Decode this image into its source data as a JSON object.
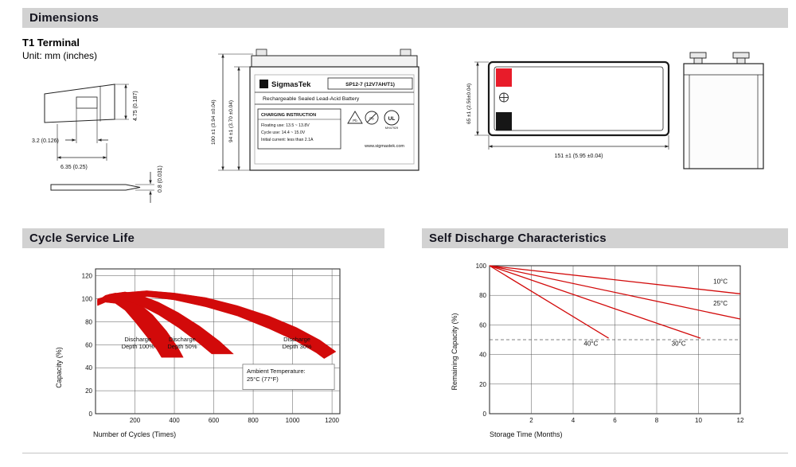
{
  "header": {
    "dimensions": "Dimensions",
    "cycle_life": "Cycle Service Life",
    "self_discharge": "Self Discharge Characteristics"
  },
  "dims": {
    "terminal_title": "T1 Terminal",
    "unit_note": "Unit: mm (inches)",
    "terminal": {
      "tip_width": "3.2 (0.126)",
      "base_width": "6.35 (0.25)",
      "height": "4.75 (0.187)",
      "thickness": "0.8 (0.031)"
    },
    "front": {
      "brand": "SigmasTek",
      "logo_letter": "S",
      "model": "SP12-7 (12V7AH/T1)",
      "subtitle": "Rechargeable Sealed Lead-Acid Battery",
      "charging_title": "CHARGING INSTRUCTION",
      "charging_line1": "Floating use: 13.5 ~ 13.8V",
      "charging_line2": "Cycle use: 14.4 ~ 15.0V",
      "charging_line3": "Initial current: less than 2.1A",
      "pb1": "Pb",
      "pb2": "Pb",
      "ul": "UL",
      "ul_code": "MH47929",
      "website": "www.sigmastek.com",
      "dim_total": "100 ±1 (3.94 ±0.04)",
      "dim_case": "94 ±1 (3.70 ±0.04)"
    },
    "top": {
      "dim_depth": "65 ±1 (2.56±0.04)",
      "dim_length": "151 ±1 (5.95 ±0.04)"
    }
  },
  "colors": {
    "positive_red": "#e81c2a",
    "negative_black": "#161616",
    "chart_red": "#d20a0a",
    "header_bg": "#d2d2d2"
  },
  "chart_data": [
    {
      "type": "area",
      "title": "Cycle Service Life",
      "xlabel": "Number of Cycles (Times)",
      "ylabel": "Capacity (%)",
      "xlim": [
        0,
        1240
      ],
      "ylim": [
        0,
        126
      ],
      "xticks": [
        200,
        400,
        600,
        800,
        1000,
        1200
      ],
      "yticks": [
        0,
        20,
        40,
        60,
        80,
        100,
        120
      ],
      "grid": true,
      "legend": "none",
      "color": "#d20a0a",
      "bands": [
        {
          "name": "Discharge Depth 100%",
          "upper": [
            [
              10,
              98
            ],
            [
              50,
              103
            ],
            [
              100,
              105
            ],
            [
              160,
              103
            ],
            [
              220,
              96
            ],
            [
              290,
              86
            ],
            [
              360,
              72
            ],
            [
              420,
              57
            ],
            [
              445,
              49
            ]
          ],
          "lower": [
            [
              10,
              94
            ],
            [
              50,
              97
            ],
            [
              100,
              96
            ],
            [
              150,
              90
            ],
            [
              200,
              80
            ],
            [
              260,
              67
            ],
            [
              310,
              56
            ],
            [
              335,
              49
            ]
          ],
          "label": {
            "lines": [
              "Discharge",
              "Depth 100%"
            ],
            "x": 215,
            "y": 63
          }
        },
        {
          "name": "Discharge Depth 50%",
          "upper": [
            [
              10,
              99
            ],
            [
              70,
              104
            ],
            [
              150,
              106
            ],
            [
              230,
              103
            ],
            [
              320,
              97
            ],
            [
              420,
              88
            ],
            [
              530,
              76
            ],
            [
              630,
              63
            ],
            [
              700,
              52
            ]
          ],
          "lower": [
            [
              10,
              95
            ],
            [
              70,
              99
            ],
            [
              150,
              99
            ],
            [
              230,
              94
            ],
            [
              320,
              86
            ],
            [
              420,
              75
            ],
            [
              520,
              62
            ],
            [
              590,
              52
            ]
          ],
          "label": {
            "lines": [
              "Discharge",
              "Depth 50%"
            ],
            "x": 440,
            "y": 63
          }
        },
        {
          "name": "Discharge Depth 30%",
          "upper": [
            [
              10,
              100
            ],
            [
              120,
              105
            ],
            [
              260,
              107
            ],
            [
              400,
              105
            ],
            [
              560,
              101
            ],
            [
              720,
              94
            ],
            [
              880,
              85
            ],
            [
              1020,
              75
            ],
            [
              1140,
              64
            ],
            [
              1220,
              54
            ]
          ],
          "lower": [
            [
              10,
              97
            ],
            [
              120,
              101
            ],
            [
              260,
              102
            ],
            [
              400,
              99
            ],
            [
              560,
              93
            ],
            [
              720,
              85
            ],
            [
              880,
              74
            ],
            [
              1020,
              63
            ],
            [
              1120,
              53
            ],
            [
              1160,
              48
            ]
          ],
          "label": {
            "lines": [
              "Discharge",
              "Depth 30%"
            ],
            "x": 1022,
            "y": 63
          }
        }
      ],
      "annotation": {
        "lines": [
          "Ambient Temperature:",
          "25°C (77°F)"
        ],
        "x": 747,
        "y": 43,
        "x2": 1212,
        "y2": 21
      }
    },
    {
      "type": "line",
      "title": "Self Discharge Characteristics",
      "xlabel": "Storage Time (Months)",
      "ylabel": "Remaining Capacity (%)",
      "xlim": [
        0,
        12
      ],
      "ylim": [
        0,
        100
      ],
      "xticks": [
        2,
        4,
        6,
        8,
        10,
        12
      ],
      "yticks": [
        0,
        20,
        40,
        60,
        80,
        100
      ],
      "grid": true,
      "legend": "inline-labels",
      "color": "#d20a0a",
      "series": [
        {
          "name": "10°C",
          "points": [
            [
              0,
              100
            ],
            [
              12,
              81
            ]
          ],
          "label": {
            "x": 11.05,
            "y": 88
          }
        },
        {
          "name": "25°C",
          "points": [
            [
              0,
              100
            ],
            [
              12,
              64
            ]
          ],
          "label": {
            "x": 11.05,
            "y": 73
          }
        },
        {
          "name": "30°C",
          "points": [
            [
              0,
              100
            ],
            [
              10.1,
              51
            ]
          ],
          "label": {
            "x": 9.05,
            "y": 46
          }
        },
        {
          "name": "40°C",
          "points": [
            [
              0,
              100
            ],
            [
              5.7,
              51
            ]
          ],
          "label": {
            "x": 4.85,
            "y": 46
          }
        }
      ],
      "ref_line": {
        "y": 50
      }
    }
  ]
}
